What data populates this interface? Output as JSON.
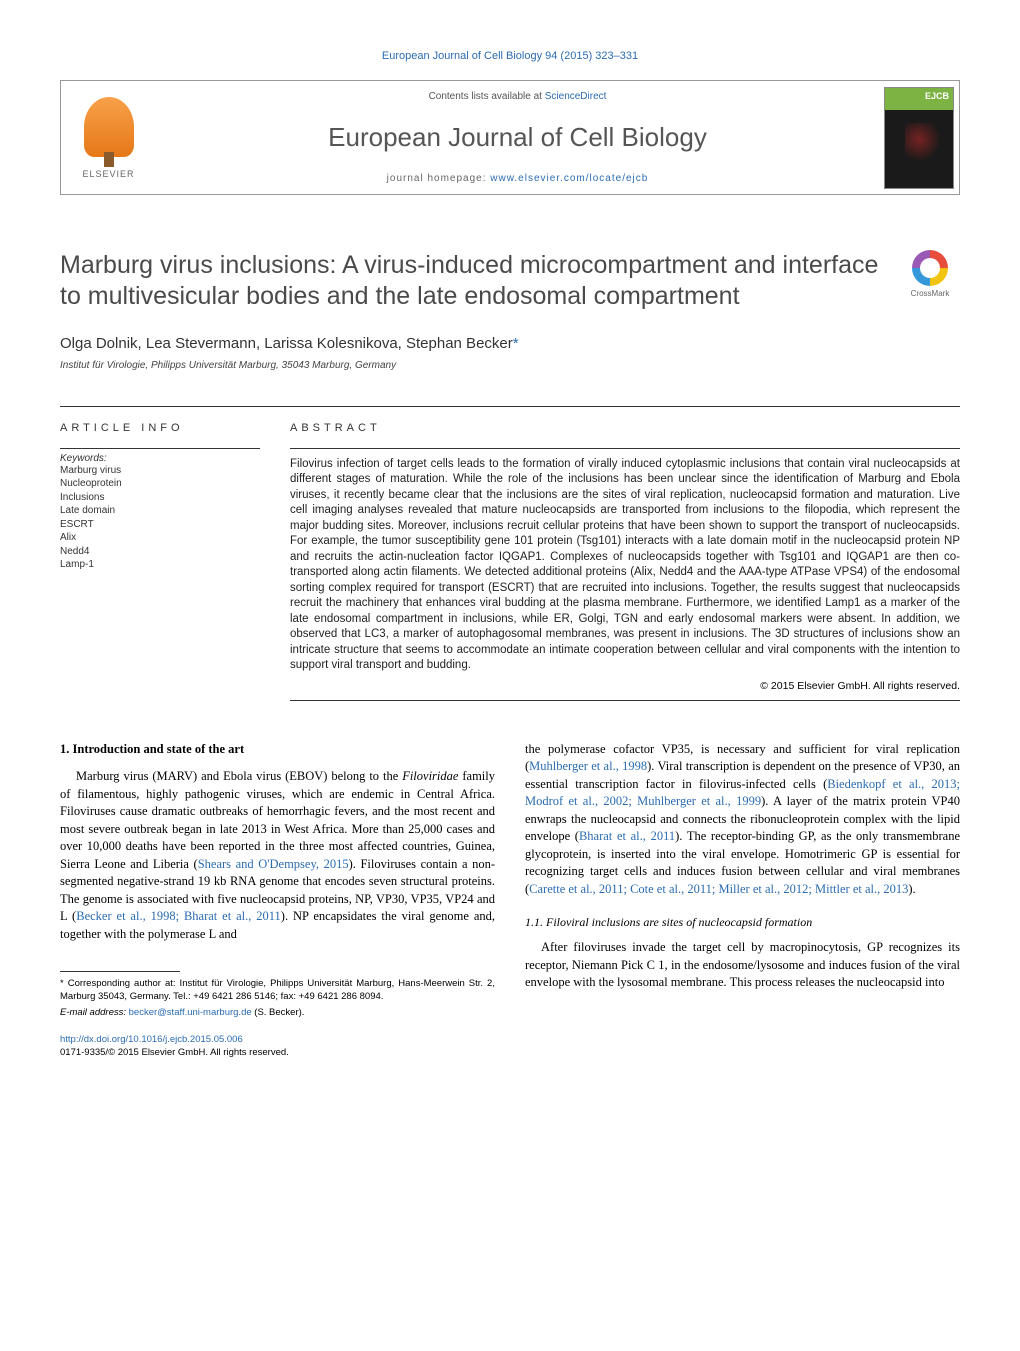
{
  "top_citation": "European Journal of Cell Biology 94 (2015) 323–331",
  "header": {
    "contents_prefix": "Contents lists available at ",
    "contents_link": "ScienceDirect",
    "journal_name": "European Journal of Cell Biology",
    "homepage_prefix": "journal homepage: ",
    "homepage_url": "www.elsevier.com/locate/ejcb",
    "publisher": "ELSEVIER",
    "cover_label": "EJCB"
  },
  "crossmark_label": "CrossMark",
  "title": "Marburg virus inclusions: A virus-induced microcompartment and interface to multivesicular bodies and the late endosomal compartment",
  "authors": "Olga Dolnik, Lea Stevermann, Larissa Kolesnikova, Stephan Becker",
  "corr_marker": "*",
  "affiliation": "Institut für Virologie, Philipps Universität Marburg, 35043 Marburg, Germany",
  "article_info_label": "ARTICLE INFO",
  "abstract_label": "ABSTRACT",
  "keywords_label": "Keywords:",
  "keywords": [
    "Marburg virus",
    "Nucleoprotein",
    "Inclusions",
    "Late domain",
    "ESCRT",
    "Alix",
    "Nedd4",
    "Lamp-1"
  ],
  "abstract": "Filovirus infection of target cells leads to the formation of virally induced cytoplasmic inclusions that contain viral nucleocapsids at different stages of maturation. While the role of the inclusions has been unclear since the identification of Marburg and Ebola viruses, it recently became clear that the inclusions are the sites of viral replication, nucleocapsid formation and maturation. Live cell imaging analyses revealed that mature nucleocapsids are transported from inclusions to the filopodia, which represent the major budding sites. Moreover, inclusions recruit cellular proteins that have been shown to support the transport of nucleocapsids. For example, the tumor susceptibility gene 101 protein (Tsg101) interacts with a late domain motif in the nucleocapsid protein NP and recruits the actin-nucleation factor IQGAP1. Complexes of nucleocapsids together with Tsg101 and IQGAP1 are then co-transported along actin filaments. We detected additional proteins (Alix, Nedd4 and the AAA-type ATPase VPS4) of the endosomal sorting complex required for transport (ESCRT) that are recruited into inclusions. Together, the results suggest that nucleocapsids recruit the machinery that enhances viral budding at the plasma membrane. Furthermore, we identified Lamp1 as a marker of the late endosomal compartment in inclusions, while ER, Golgi, TGN and early endosomal markers were absent. In addition, we observed that LC3, a marker of autophagosomal membranes, was present in inclusions. The 3D structures of inclusions show an intricate structure that seems to accommodate an intimate cooperation between cellular and viral components with the intention to support viral transport and budding.",
  "copyright_line": "© 2015 Elsevier GmbH. All rights reserved.",
  "intro": {
    "heading": "1.  Introduction and state of the art",
    "para1_a": "Marburg virus (MARV) and Ebola virus (EBOV) belong to the ",
    "para1_b": " family of filamentous, highly pathogenic viruses, which are endemic in Central Africa. Filoviruses cause dramatic outbreaks of hemorrhagic fevers, and the most recent and most severe outbreak began in late 2013 in West Africa. More than 25,000 cases and over 10,000 deaths have been reported in the three most affected countries, Guinea, Sierra Leone and Liberia (",
    "ref1": "Shears and O'Dempsey, 2015",
    "para1_c": "). Filoviruses contain a non-segmented negative-strand 19 kb RNA genome that encodes seven structural proteins. The genome is associated with five nucleocapsid proteins, NP, VP30, VP35, VP24 and L (",
    "ref2": "Becker et al., 1998; Bharat et al., 2011",
    "para1_d": "). NP encapsidates the viral genome and, together with the polymerase L and",
    "family_name": "Filoviridae",
    "col2_a": "the polymerase cofactor VP35, is necessary and sufficient for viral replication (",
    "ref3": "Muhlberger et al., 1998",
    "col2_b": "). Viral transcription is dependent on the presence of VP30, an essential transcription factor in filovirus-infected cells (",
    "ref4": "Biedenkopf et al., 2013; Modrof et al., 2002; Muhlberger et al., 1999",
    "col2_c": "). A layer of the matrix protein VP40 enwraps the nucleocapsid and connects the ribonucleoprotein complex with the lipid envelope (",
    "ref5": "Bharat et al., 2011",
    "col2_d": "). The receptor-binding GP, as the only transmembrane glycoprotein, is inserted into the viral envelope. Homotrimeric GP is essential for recognizing target cells and induces fusion between cellular and viral membranes (",
    "ref6": "Carette et al., 2011; Cote et al., 2011; Miller et al., 2012; Mittler et al., 2013",
    "col2_e": ").",
    "subheading": "1.1.  Filoviral inclusions are sites of nucleocapsid formation",
    "para2": "After filoviruses invade the target cell by macropinocytosis, GP recognizes its receptor, Niemann Pick C 1, in the endosome/lysosome and induces fusion of the viral envelope with the lysosomal membrane. This process releases the nucleocapsid into"
  },
  "footer": {
    "corr_note": "* Corresponding author at: Institut für Virologie, Philipps Universität Marburg, Hans-Meerwein Str. 2, Marburg 35043, Germany. Tel.: +49 6421 286 5146; fax: +49 6421 286 8094.",
    "email_label": "E-mail address: ",
    "email": "becker@staff.uni-marburg.de",
    "email_author": " (S. Becker).",
    "doi": "http://dx.doi.org/10.1016/j.ejcb.2015.05.006",
    "issn": "0171-9335/© 2015 Elsevier GmbH. All rights reserved."
  },
  "colors": {
    "link": "#2b6cb0",
    "text": "#222222",
    "heading": "#4a4a4a",
    "rule": "#333333"
  }
}
